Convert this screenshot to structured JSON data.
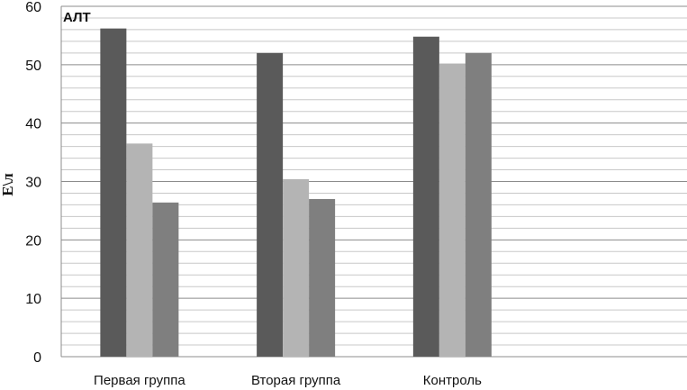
{
  "chart_data": {
    "type": "bar",
    "title": "АЛТ",
    "ylabel": "Е\\л",
    "xlabel": "",
    "categories": [
      "Первая группа",
      "Вторая группа",
      "Контроль",
      ""
    ],
    "series": [
      {
        "values": [
          56.2,
          52.0,
          54.8,
          null
        ],
        "color": "#5a5a5a"
      },
      {
        "values": [
          36.5,
          30.4,
          50.2,
          null
        ],
        "color": "#b4b4b4"
      },
      {
        "values": [
          26.4,
          27.0,
          52.0,
          null
        ],
        "color": "#7f7f7f"
      }
    ],
    "ylim": [
      0,
      60
    ],
    "yticks": [
      0,
      10,
      20,
      30,
      40,
      50,
      60
    ],
    "minor_grid_step": 2,
    "grid": true,
    "legend": "none"
  }
}
